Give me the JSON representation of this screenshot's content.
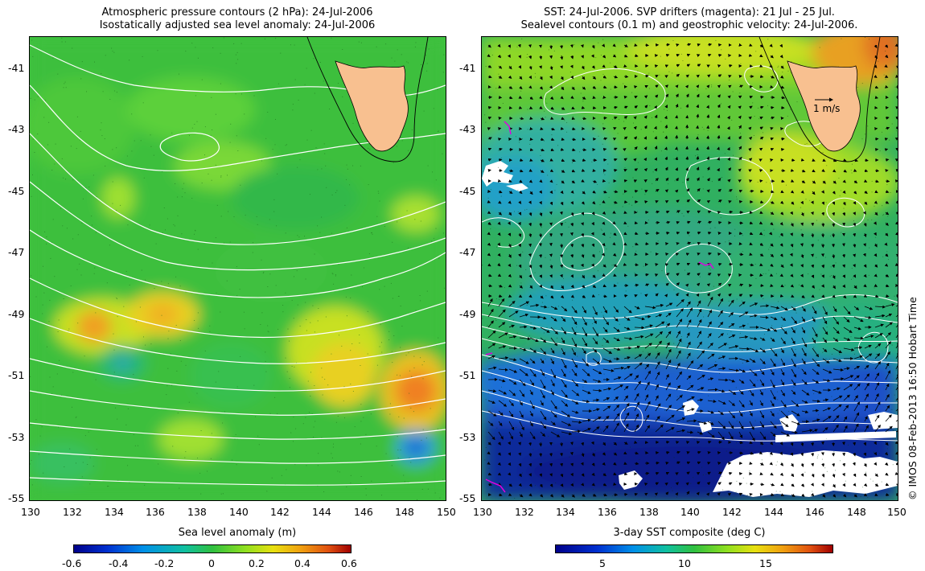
{
  "left_panel": {
    "title_line1": "Atmospheric pressure contours (2 hPa): 24-Jul-2006",
    "title_line2": "Isostatically adjusted sea level anomaly: 24-Jul-2006",
    "colorbar_label": "Sea level anomaly (m)",
    "colorbar_ticks": [
      "-0.6",
      "-0.4",
      "-0.2",
      "0",
      "0.2",
      "0.4",
      "0.6"
    ]
  },
  "right_panel": {
    "title_line1": "SST: 24-Jul-2006. SVP drifters (magenta): 21 Jul - 25 Jul.",
    "title_line2": "Sealevel contours (0.1 m) and geostrophic velocity: 24-Jul-2006.",
    "colorbar_label": "3-day SST composite (deg C)",
    "colorbar_ticks": [
      "5",
      "10",
      "15"
    ],
    "scale_arrow_label": "1 m/s"
  },
  "axes": {
    "lat_ticks": [
      "-41",
      "-43",
      "-45",
      "-47",
      "-49",
      "-51",
      "-53",
      "-55"
    ],
    "lon_ticks": [
      "130",
      "132",
      "134",
      "136",
      "138",
      "140",
      "142",
      "144",
      "146",
      "148",
      "150"
    ],
    "lon_range": [
      130,
      150
    ],
    "lat_range": [
      -55,
      -40.2
    ]
  },
  "credit": "© IMOS 08-Feb-2013 16:50 Hobart Time",
  "colors": {
    "land": "#f8c090",
    "drifters": "#e000e0",
    "contour": "#ffffff"
  }
}
